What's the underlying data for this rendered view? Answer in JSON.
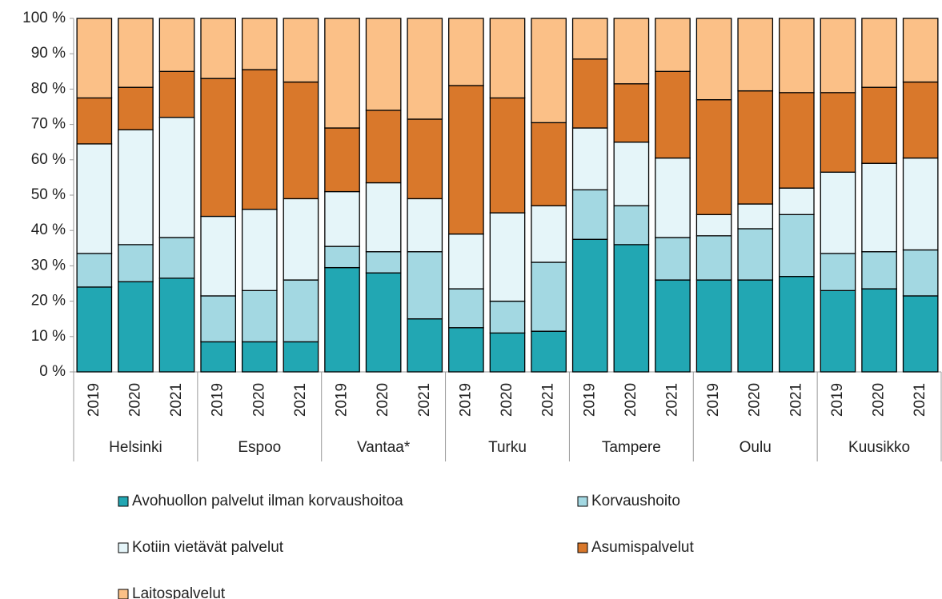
{
  "chart_data": {
    "type": "stacked_bar",
    "categories": [
      "2019",
      "2020",
      "2021",
      "2019",
      "2020",
      "2021",
      "2019",
      "2020",
      "2021",
      "2019",
      "2020",
      "2021",
      "2019",
      "2020",
      "2021",
      "2019",
      "2020",
      "2021",
      "2019",
      "2020",
      "2021"
    ],
    "groups": [
      "Helsinki",
      "Espoo",
      "Vantaa*",
      "Turku",
      "Tampere",
      "Oulu",
      "Kuusikko"
    ],
    "series": [
      {
        "name": "Avohuollon palvelut ilman korvaushoitoa",
        "color": "#22a7b3",
        "values": [
          24,
          25.5,
          26.5,
          8.5,
          8.5,
          8.5,
          29.5,
          28,
          15,
          12.5,
          11,
          11.5,
          37.5,
          36,
          26,
          26,
          26,
          27,
          23,
          23.5,
          21.5
        ]
      },
      {
        "name": "Korvaushoito",
        "color": "#a3d8e2",
        "values": [
          9.5,
          10.5,
          11.5,
          13,
          14.5,
          17.5,
          6,
          6,
          19,
          11,
          9,
          19.5,
          14,
          11,
          12,
          12.5,
          14.5,
          17.5,
          10.5,
          10.5,
          13
        ]
      },
      {
        "name": "Kotiin vietävät palvelut",
        "color": "#e5f5f9",
        "values": [
          31,
          32.5,
          34,
          22.5,
          23,
          23,
          15.5,
          19.5,
          15,
          15.5,
          25,
          16,
          17.5,
          18,
          22.5,
          6,
          7,
          7.5,
          23,
          25,
          26
        ]
      },
      {
        "name": "Asumispalvelut",
        "color": "#d9782b",
        "values": [
          13,
          12,
          13,
          39,
          39.5,
          33,
          18,
          20.5,
          22.5,
          42,
          32.5,
          23.5,
          19.5,
          16.5,
          24.5,
          32.5,
          32,
          27,
          22.5,
          21.5,
          21.5
        ]
      },
      {
        "name": "Laitospalvelut",
        "color": "#fbc087",
        "values": [
          22.5,
          19.5,
          15,
          17,
          14.5,
          18,
          31,
          26,
          28.5,
          19,
          22.5,
          29.5,
          11.5,
          18.5,
          15,
          23,
          20.5,
          21,
          21,
          19.5,
          18
        ]
      }
    ],
    "ylim": [
      0,
      100
    ],
    "yticks": [
      {
        "value": 0,
        "label": "0 %"
      },
      {
        "value": 10,
        "label": "10 %"
      },
      {
        "value": 20,
        "label": "20 %"
      },
      {
        "value": 30,
        "label": "30 %"
      },
      {
        "value": 40,
        "label": "40 %"
      },
      {
        "value": 50,
        "label": "50 %"
      },
      {
        "value": 60,
        "label": "60 %"
      },
      {
        "value": 70,
        "label": "70 %"
      },
      {
        "value": 80,
        "label": "80 %"
      },
      {
        "value": 90,
        "label": "90 %"
      },
      {
        "value": 100,
        "label": "100 %"
      }
    ],
    "legend": "bottom"
  }
}
